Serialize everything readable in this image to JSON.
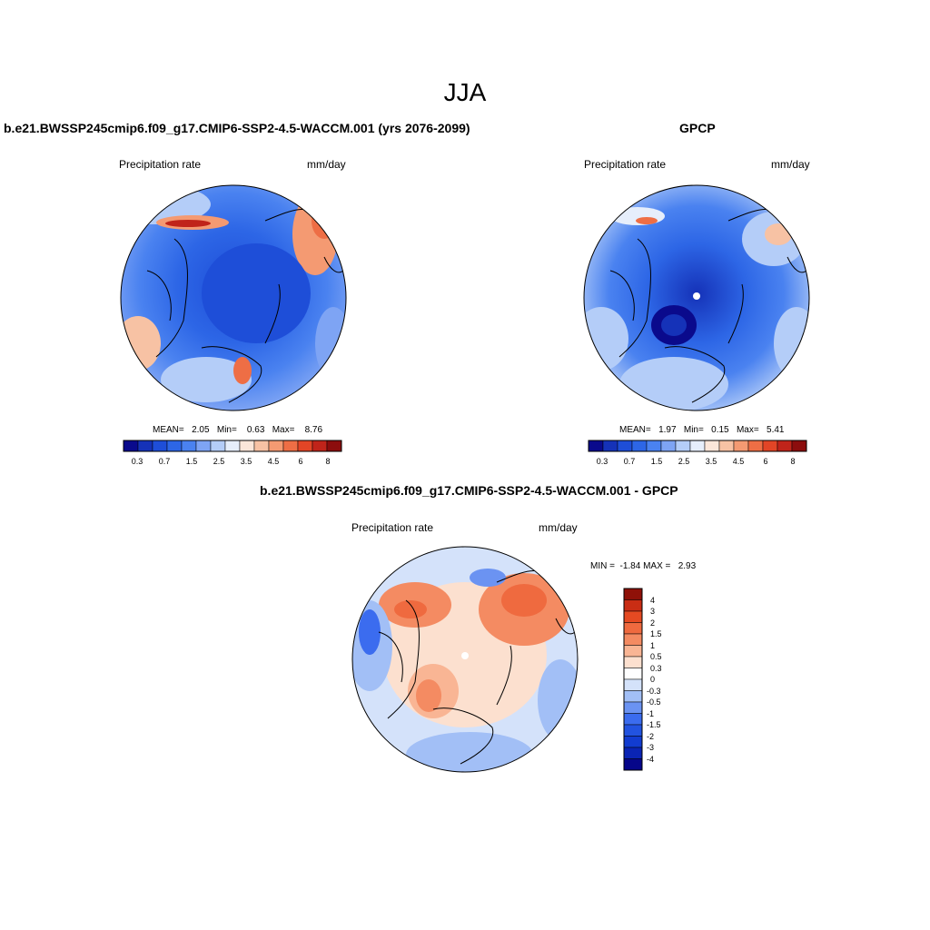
{
  "figure_title": "JJA",
  "colors": {
    "seq": [
      "#0a0a8c",
      "#1532b8",
      "#1e4ed8",
      "#2d66e6",
      "#4a82f0",
      "#7ea4f4",
      "#b4cdf8",
      "#e6eefb",
      "#fbe6d9",
      "#f7c2a4",
      "#f49a72",
      "#ee6e45",
      "#e24526",
      "#c0241a",
      "#8c0d0d"
    ],
    "diff": [
      "#06068a",
      "#0a24b4",
      "#123cd0",
      "#2253e0",
      "#3b6cef",
      "#6b93f2",
      "#a2bff6",
      "#d4e2fa",
      "#ffffff",
      "#fce0cf",
      "#f9b594",
      "#f48b62",
      "#ef6a3f",
      "#e54a22",
      "#c92d14",
      "#8f1108"
    ],
    "land": "#000000"
  },
  "panels": [
    {
      "id": "model",
      "title": "b.e21.BWSSP245cmip6.f09_g17.CMIP6-SSP2-4.5-WACCM.001 (yrs 2076-2099)",
      "left_label": "Precipitation rate",
      "right_label": "mm/day",
      "stats": "MEAN=   2.05   Min=    0.63   Max=    8.76",
      "colorbar_labels": [
        "0.3",
        "0.7",
        "1.5",
        "2.5",
        "3.5",
        "4.5",
        "6",
        "8"
      ]
    },
    {
      "id": "obs",
      "title": "GPCP",
      "left_label": "Precipitation rate",
      "right_label": "mm/day",
      "stats": "MEAN=   1.97   Min=   0.15   Max=   5.41",
      "colorbar_labels": [
        "0.3",
        "0.7",
        "1.5",
        "2.5",
        "3.5",
        "4.5",
        "6",
        "8"
      ]
    },
    {
      "id": "diff",
      "title": "b.e21.BWSSP245cmip6.f09_g17.CMIP6-SSP2-4.5-WACCM.001 - GPCP",
      "left_label": "Precipitation rate",
      "right_label": "mm/day",
      "stats": "MIN =  -1.84 MAX =   2.93",
      "colorbar_labels": [
        "4",
        "3",
        "2",
        "1.5",
        "1",
        "0.5",
        "0.3",
        "0",
        "-0.3",
        "-0.5",
        "-1",
        "-1.5",
        "-2",
        "-3",
        "-4"
      ]
    }
  ]
}
